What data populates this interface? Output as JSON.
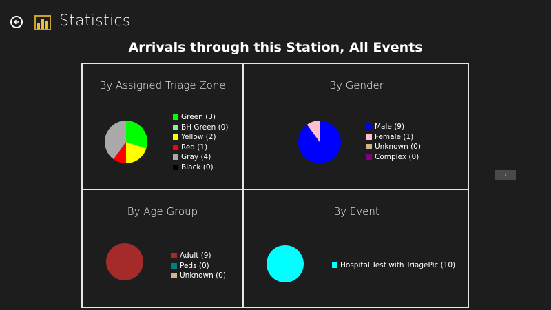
{
  "header": {
    "app_title": "Statistics",
    "back_icon": "back-arrow-icon",
    "app_icon": "bar-chart-icon"
  },
  "page_title": "Arrivals through this Station, All Events",
  "panels": [
    {
      "title": "By Assigned Triage Zone",
      "items": [
        {
          "label": "Green (3)",
          "color": "#00ff00"
        },
        {
          "label": "BH Green (0)",
          "color": "#90ee90"
        },
        {
          "label": "Yellow (2)",
          "color": "#ffff00"
        },
        {
          "label": "Red (1)",
          "color": "#ff0000"
        },
        {
          "label": "Gray (4)",
          "color": "#a9a9a9"
        },
        {
          "label": "Black (0)",
          "color": "#000000"
        }
      ]
    },
    {
      "title": "By Gender",
      "items": [
        {
          "label": "Male (9)",
          "color": "#0000ff"
        },
        {
          "label": "Female (1)",
          "color": "#ffc0cb"
        },
        {
          "label": "Unknown (0)",
          "color": "#d2b48c"
        },
        {
          "label": "Complex (0)",
          "color": "#800080"
        }
      ]
    },
    {
      "title": "By Age Group",
      "items": [
        {
          "label": "Adult (9)",
          "color": "#a52a2a"
        },
        {
          "label": "Peds (0)",
          "color": "#008080"
        },
        {
          "label": "Unknown (0)",
          "color": "#d2b48c"
        }
      ]
    },
    {
      "title": "By Event",
      "items": [
        {
          "label": "Hospital Test with TriagePic (10)",
          "color": "#00ffff"
        }
      ]
    }
  ],
  "chart_data": [
    {
      "type": "pie",
      "title": "By Assigned Triage Zone",
      "categories": [
        "Green",
        "BH Green",
        "Yellow",
        "Red",
        "Gray",
        "Black"
      ],
      "values": [
        3,
        0,
        2,
        1,
        4,
        0
      ]
    },
    {
      "type": "pie",
      "title": "By Gender",
      "categories": [
        "Male",
        "Female",
        "Unknown",
        "Complex"
      ],
      "values": [
        9,
        1,
        0,
        0
      ]
    },
    {
      "type": "pie",
      "title": "By Age Group",
      "categories": [
        "Adult",
        "Peds",
        "Unknown"
      ],
      "values": [
        9,
        0,
        0
      ]
    },
    {
      "type": "pie",
      "title": "By Event",
      "categories": [
        "Hospital Test with TriagePic"
      ],
      "values": [
        10
      ]
    }
  ],
  "scroll_button": {
    "label": "›"
  }
}
